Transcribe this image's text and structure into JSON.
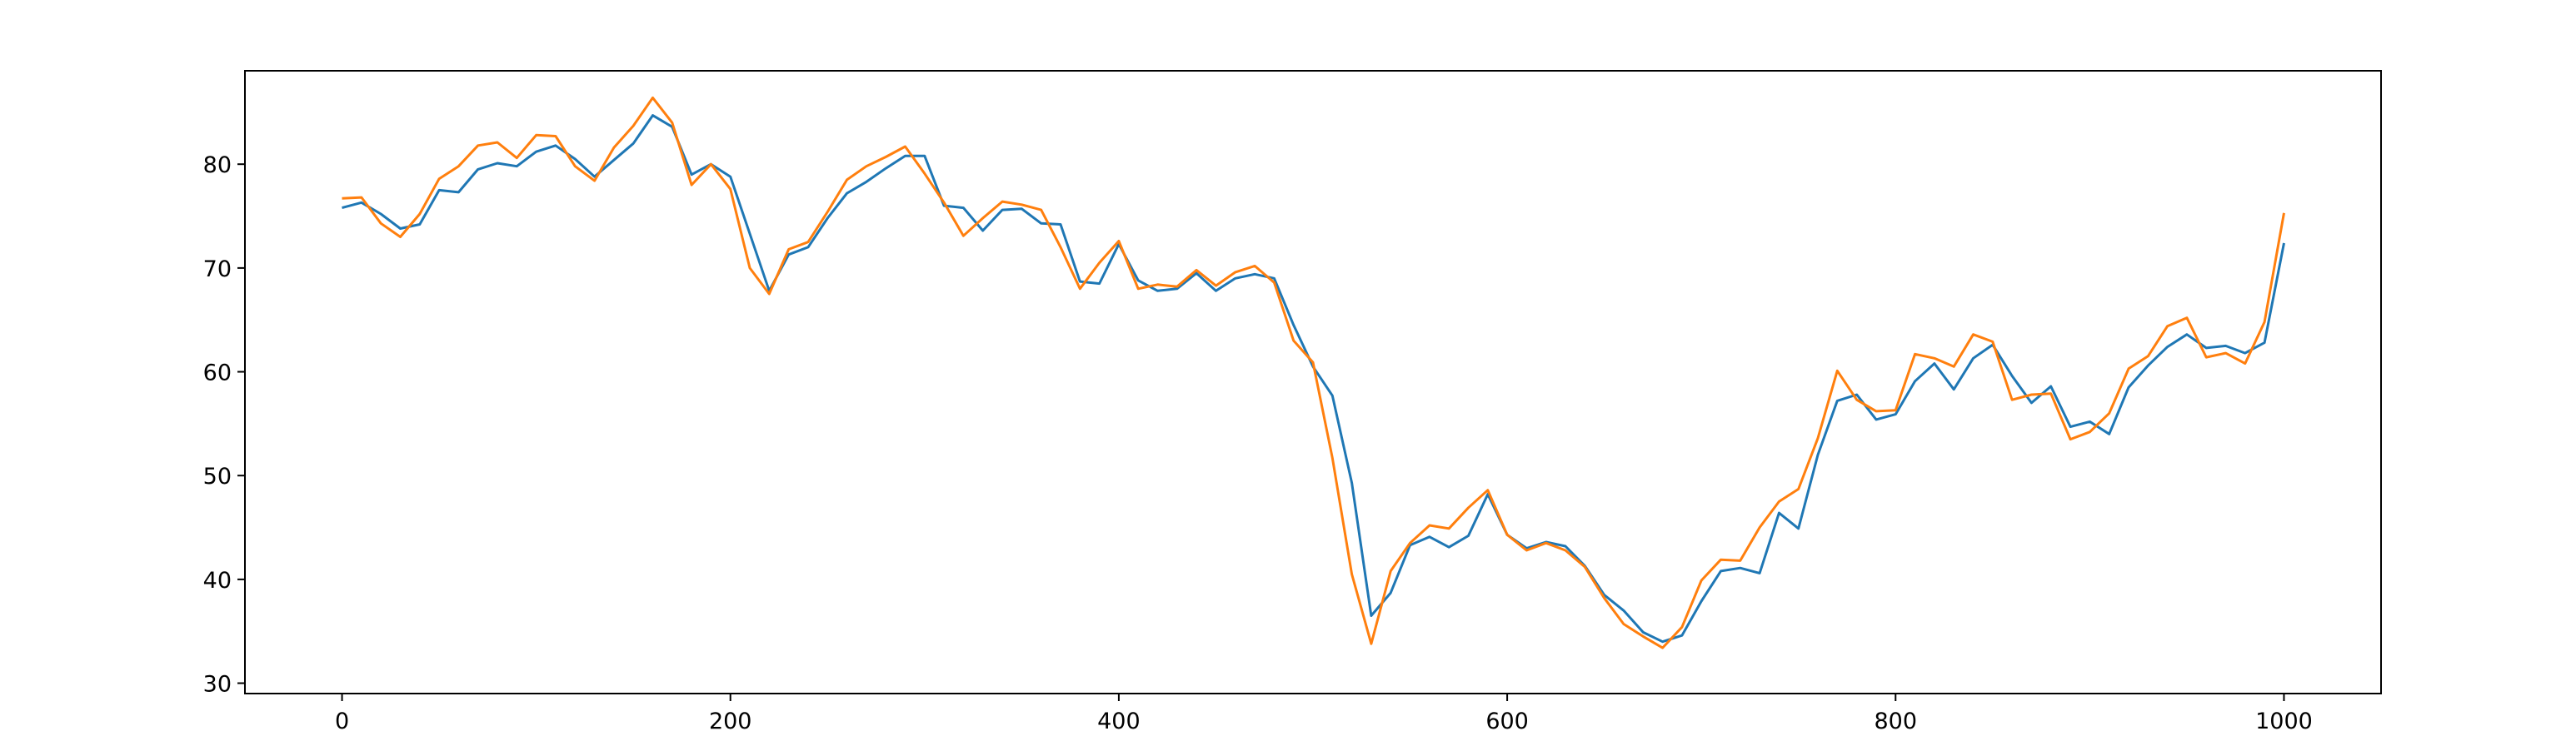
{
  "chart_data": {
    "type": "line",
    "title": "",
    "xlabel": "",
    "ylabel": "",
    "xlim": [
      -50,
      1050
    ],
    "ylim": [
      29,
      89
    ],
    "xticks": [
      0,
      200,
      400,
      600,
      800,
      1000
    ],
    "yticks": [
      30,
      40,
      50,
      60,
      70,
      80
    ],
    "xtick_labels": [
      "0",
      "200",
      "400",
      "600",
      "800",
      "1000"
    ],
    "ytick_labels": [
      "30",
      "40",
      "50",
      "60",
      "70",
      "80"
    ],
    "grid": false,
    "legend": "none",
    "x_points": [
      0,
      10,
      20,
      30,
      40,
      50,
      60,
      70,
      80,
      90,
      100,
      110,
      120,
      130,
      140,
      150,
      160,
      170,
      180,
      190,
      200,
      210,
      220,
      230,
      240,
      250,
      260,
      270,
      280,
      290,
      300,
      310,
      320,
      330,
      340,
      350,
      360,
      370,
      380,
      390,
      400,
      410,
      420,
      430,
      440,
      450,
      460,
      470,
      480,
      490,
      500,
      510,
      520,
      530,
      540,
      550,
      560,
      570,
      580,
      590,
      600,
      610,
      620,
      630,
      640,
      650,
      660,
      670,
      680,
      690,
      700,
      710,
      720,
      730,
      740,
      750,
      760,
      770,
      780,
      790,
      800,
      810,
      820,
      830,
      840,
      850,
      860,
      870,
      880,
      890,
      900,
      910,
      920,
      930,
      940,
      950,
      960,
      970,
      980,
      990,
      1000
    ],
    "series": [
      {
        "color": "#1f77b4",
        "values": [
          75.8,
          76.3,
          75.2,
          73.8,
          74.2,
          77.5,
          77.3,
          79.5,
          80.1,
          79.8,
          81.2,
          81.8,
          80.5,
          78.8,
          80.4,
          82.0,
          84.7,
          83.6,
          79.0,
          80.0,
          78.8,
          73.3,
          67.8,
          71.3,
          72.0,
          74.8,
          77.2,
          78.3,
          79.6,
          80.8,
          80.8,
          76.0,
          75.8,
          73.6,
          75.6,
          75.7,
          74.3,
          74.2,
          68.7,
          68.5,
          72.3,
          68.8,
          67.8,
          68.0,
          69.5,
          67.8,
          69.0,
          69.4,
          69.0,
          64.5,
          60.5,
          57.7,
          49.3,
          36.5,
          38.7,
          43.3,
          44.1,
          43.1,
          44.2,
          48.2,
          44.3,
          43.0,
          43.6,
          43.2,
          41.3,
          38.5,
          37.0,
          34.9,
          34.0,
          34.6,
          37.9,
          40.8,
          41.1,
          40.6,
          46.4,
          44.9,
          52.0,
          57.2,
          57.8,
          55.4,
          55.9,
          59.1,
          60.8,
          58.3,
          61.3,
          62.6,
          59.6,
          57.0,
          58.6,
          54.7,
          55.2,
          54.0,
          58.5,
          60.6,
          62.4,
          63.6,
          62.3,
          62.5,
          61.8,
          62.8,
          72.4
        ]
      },
      {
        "color": "#ff7f0e",
        "values": [
          76.7,
          76.8,
          74.3,
          73.0,
          75.2,
          78.6,
          79.8,
          81.8,
          82.1,
          80.6,
          82.8,
          82.7,
          79.8,
          78.4,
          81.6,
          83.7,
          86.4,
          84.0,
          78.0,
          80.0,
          77.6,
          70.0,
          67.5,
          71.8,
          72.5,
          75.4,
          78.5,
          79.8,
          80.7,
          81.7,
          79.1,
          76.3,
          73.1,
          74.8,
          76.4,
          76.1,
          75.6,
          72.0,
          68.0,
          70.5,
          72.6,
          68.0,
          68.4,
          68.2,
          69.8,
          68.3,
          69.6,
          70.2,
          68.6,
          63.0,
          60.9,
          51.7,
          40.5,
          33.8,
          40.8,
          43.5,
          45.2,
          44.9,
          46.9,
          48.6,
          44.3,
          42.8,
          43.5,
          42.8,
          41.2,
          38.2,
          35.7,
          34.5,
          33.4,
          35.4,
          39.9,
          41.9,
          41.8,
          45.0,
          47.5,
          48.7,
          53.6,
          60.1,
          57.3,
          56.2,
          56.3,
          61.7,
          61.3,
          60.5,
          63.6,
          62.9,
          57.3,
          57.8,
          57.9,
          53.5,
          54.2,
          56.0,
          60.3,
          61.5,
          64.4,
          65.2,
          61.4,
          61.8,
          60.8,
          64.8,
          75.3
        ]
      }
    ]
  }
}
